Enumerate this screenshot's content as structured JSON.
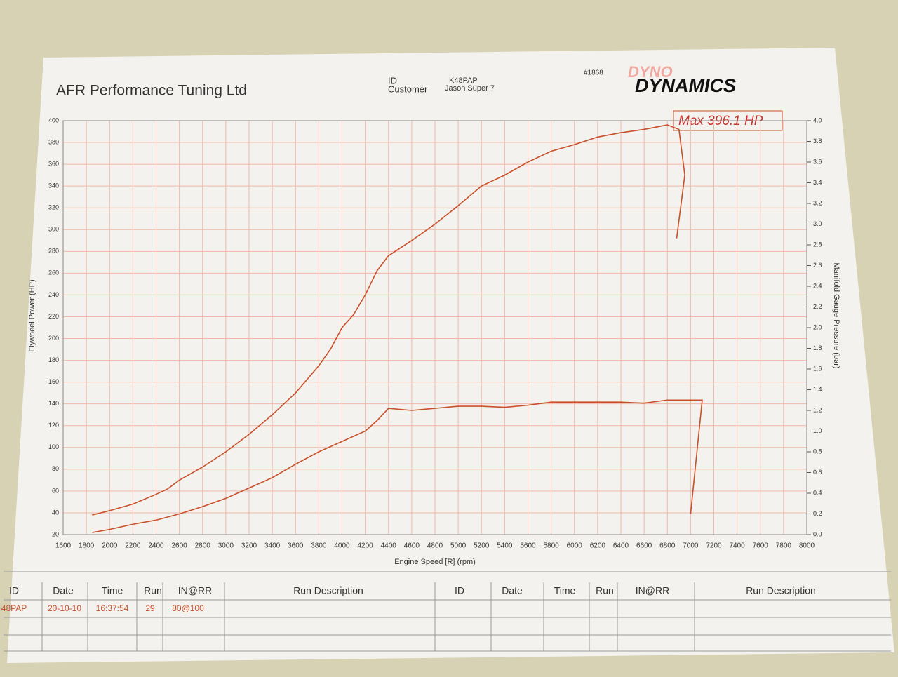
{
  "header": {
    "company": "AFR Performance Tuning Ltd",
    "id_label": "ID",
    "id": "K48PAP",
    "customer_label": "Customer",
    "customer": "Jason Super 7",
    "number": "#1868",
    "logo_top": "DYNO",
    "logo": "DYNAMICS"
  },
  "chart_data": {
    "type": "line",
    "annotation": "Max 396.1 HP",
    "x_label": "Engine Speed [R] (rpm)",
    "y_label": "Flywheel Power (HP)",
    "y2_label": "Manifold Gauge Pressure (bar)",
    "xlim": [
      1600,
      8000
    ],
    "xticks": [
      1600,
      1800,
      2000,
      2200,
      2400,
      2600,
      2800,
      3000,
      3200,
      3400,
      3600,
      3800,
      4000,
      4200,
      4400,
      4600,
      4800,
      5000,
      5200,
      5400,
      5600,
      5800,
      6000,
      6200,
      6400,
      6600,
      6800,
      7000,
      7200,
      7400,
      7600,
      7800,
      8000
    ],
    "ylim": [
      20,
      400
    ],
    "yticks": [
      20,
      40,
      60,
      80,
      100,
      120,
      140,
      160,
      180,
      200,
      220,
      240,
      260,
      280,
      300,
      320,
      340,
      360,
      380,
      400
    ],
    "y2lim": [
      0,
      4
    ],
    "y2ticks": [
      {
        "value": 0,
        "label": "0.0"
      },
      {
        "value": 0.2,
        "label": "0.2"
      },
      {
        "value": 0.4,
        "label": "0.4"
      },
      {
        "value": 0.6,
        "label": "0.6"
      },
      {
        "value": 0.8,
        "label": "0.8"
      },
      {
        "value": 1,
        "label": "1.0"
      },
      {
        "value": 1.2,
        "label": "1.2"
      },
      {
        "value": 1.4,
        "label": "1.4"
      },
      {
        "value": 1.6,
        "label": "1.6"
      },
      {
        "value": 1.8,
        "label": "1.8"
      },
      {
        "value": 2,
        "label": "2.0"
      },
      {
        "value": 2.2,
        "label": "2.2"
      },
      {
        "value": 2.4,
        "label": "2.4"
      },
      {
        "value": 2.6,
        "label": "2.6"
      },
      {
        "value": 2.8,
        "label": "2.8"
      },
      {
        "value": 3,
        "label": "3.0"
      },
      {
        "value": 3.2,
        "label": "3.2"
      },
      {
        "value": 3.4,
        "label": "3.4"
      },
      {
        "value": 3.6,
        "label": "3.6"
      },
      {
        "value": 3.8,
        "label": "3.8"
      },
      {
        "value": 4,
        "label": "4.0"
      }
    ],
    "grid": true,
    "series": [
      {
        "color": "#c8502a",
        "x": [
          1850,
          2000,
          2200,
          2400,
          2500,
          2600,
          2800,
          3000,
          3200,
          3400,
          3600,
          3800,
          3900,
          4000,
          4100,
          4200,
          4300,
          4400,
          4600,
          4800,
          5000,
          5200,
          5400,
          5600,
          5800,
          6000,
          6200,
          6400,
          6600,
          6800,
          6900,
          6950,
          6880
        ],
        "values": [
          38,
          42,
          48,
          57,
          62,
          70,
          82,
          96,
          112,
          130,
          150,
          175,
          190,
          210,
          222,
          240,
          262,
          276,
          290,
          305,
          322,
          340,
          350,
          362,
          372,
          378,
          385,
          389,
          392,
          396.1,
          392,
          350,
          292
        ]
      },
      {
        "color": "#c8502a",
        "axis": "y2",
        "x": [
          1850,
          2000,
          2200,
          2400,
          2600,
          2800,
          3000,
          3200,
          3400,
          3600,
          3800,
          4000,
          4200,
          4300,
          4400,
          4600,
          4800,
          5000,
          5200,
          5400,
          5600,
          5800,
          6000,
          6200,
          6400,
          6600,
          6800,
          7100,
          7000
        ],
        "values": [
          0.02,
          0.05,
          0.1,
          0.14,
          0.2,
          0.27,
          0.35,
          0.45,
          0.55,
          0.68,
          0.8,
          0.9,
          1.0,
          1.1,
          1.22,
          1.2,
          1.22,
          1.24,
          1.24,
          1.23,
          1.25,
          1.28,
          1.28,
          1.28,
          1.28,
          1.27,
          1.3,
          1.3,
          0.2
        ]
      }
    ]
  },
  "table": {
    "headers": [
      "ID",
      "Date",
      "Time",
      "Run",
      "IN@RR",
      "Run Description",
      "ID",
      "Date",
      "Time",
      "Run",
      "IN@RR",
      "Run Description"
    ],
    "rows": [
      [
        "48PAP",
        "20-10-10",
        "16:37:54",
        "29",
        "80@100"
      ]
    ]
  }
}
